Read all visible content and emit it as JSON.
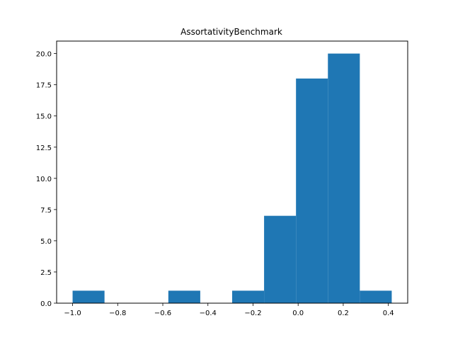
{
  "chart_data": {
    "type": "bar",
    "title": "AssortativityBenchmark",
    "xlabel": "",
    "ylabel": "",
    "bin_edges": [
      -1.0,
      -0.8585,
      -0.717,
      -0.5755,
      -0.434,
      -0.2925,
      -0.151,
      -0.0095,
      0.132,
      0.2735,
      0.415
    ],
    "counts": [
      1,
      0,
      0,
      1,
      0,
      1,
      7,
      18,
      20,
      1
    ],
    "xlim": [
      -1.0708,
      0.4858
    ],
    "ylim": [
      0,
      21
    ],
    "x_ticks": [
      {
        "value": -1.0,
        "label": "−1.0"
      },
      {
        "value": -0.8,
        "label": "−0.8"
      },
      {
        "value": -0.6,
        "label": "−0.6"
      },
      {
        "value": -0.4,
        "label": "−0.4"
      },
      {
        "value": -0.2,
        "label": "−0.2"
      },
      {
        "value": 0.0,
        "label": "0.0"
      },
      {
        "value": 0.2,
        "label": "0.2"
      },
      {
        "value": 0.4,
        "label": "0.4"
      }
    ],
    "y_ticks": [
      {
        "value": 0.0,
        "label": "0.0"
      },
      {
        "value": 2.5,
        "label": "2.5"
      },
      {
        "value": 5.0,
        "label": "5.0"
      },
      {
        "value": 7.5,
        "label": "7.5"
      },
      {
        "value": 10.0,
        "label": "10.0"
      },
      {
        "value": 12.5,
        "label": "12.5"
      },
      {
        "value": 15.0,
        "label": "15.0"
      },
      {
        "value": 17.5,
        "label": "17.5"
      },
      {
        "value": 20.0,
        "label": "20.0"
      }
    ],
    "bar_color": "#1f77b4",
    "grid": false,
    "legend": "none"
  }
}
